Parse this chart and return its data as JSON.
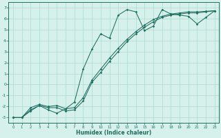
{
  "xlabel": "Humidex (Indice chaleur)",
  "bg_color": "#d6f0eb",
  "grid_color": "#b0ddd5",
  "line_color": "#1e6e60",
  "xlim_min": -0.5,
  "xlim_max": 23.5,
  "ylim_min": -3.5,
  "ylim_max": 7.5,
  "xticks": [
    0,
    1,
    2,
    3,
    4,
    5,
    6,
    7,
    8,
    9,
    10,
    11,
    12,
    13,
    14,
    15,
    16,
    17,
    18,
    19,
    20,
    21,
    22,
    23
  ],
  "yticks": [
    -3,
    -2,
    -1,
    0,
    1,
    2,
    3,
    4,
    5,
    6,
    7
  ],
  "line1_x": [
    0,
    1,
    2,
    3,
    4,
    5,
    6,
    7,
    8,
    9,
    10,
    11,
    12,
    13,
    14,
    15,
    16,
    17,
    18,
    19,
    20,
    21,
    22,
    23
  ],
  "line1_y": [
    -3,
    -3,
    -2.4,
    -1.9,
    -2.3,
    -2.6,
    -2.2,
    -1.6,
    1.4,
    3.2,
    4.6,
    4.2,
    6.3,
    6.8,
    6.6,
    4.9,
    5.3,
    6.8,
    6.4,
    6.3,
    6.2,
    5.5,
    6.1,
    6.7
  ],
  "line2_x": [
    0,
    1,
    2,
    3,
    4,
    5,
    6,
    7,
    8,
    9,
    10,
    11,
    12,
    13,
    14,
    15,
    16,
    17,
    18,
    19,
    20,
    21,
    22,
    23
  ],
  "line2_y": [
    -3,
    -3,
    -2.3,
    -1.9,
    -2.1,
    -2.1,
    -2.4,
    -2.3,
    -1.5,
    0.2,
    1.1,
    2.1,
    3.0,
    3.9,
    4.6,
    5.2,
    5.7,
    6.1,
    6.3,
    6.4,
    6.5,
    6.5,
    6.6,
    6.7
  ],
  "line3_x": [
    0,
    1,
    2,
    3,
    4,
    5,
    6,
    7,
    8,
    9,
    10,
    11,
    12,
    13,
    14,
    15,
    16,
    17,
    18,
    19,
    20,
    21,
    22,
    23
  ],
  "line3_y": [
    -3,
    -3,
    -2.1,
    -1.8,
    -2.0,
    -1.9,
    -2.2,
    -2.1,
    -1.2,
    0.4,
    1.4,
    2.4,
    3.3,
    4.1,
    4.8,
    5.4,
    5.9,
    6.2,
    6.4,
    6.5,
    6.6,
    6.6,
    6.65,
    6.7
  ]
}
